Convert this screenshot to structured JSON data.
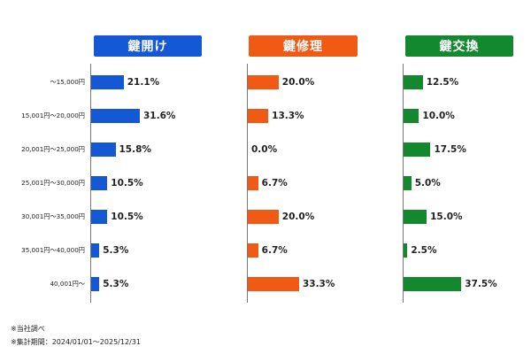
{
  "chart_data": {
    "type": "bar",
    "orientation": "horizontal",
    "layout": "small-multiples",
    "categories": [
      "～15,000円",
      "15,001円～20,000円",
      "20,001円～25,000円",
      "25,001円～30,000円",
      "30,001円～35,000円",
      "35,001円～40,000円",
      "40,001円～"
    ],
    "xlim": [
      0,
      40
    ],
    "grid": false,
    "legend": "none",
    "series": [
      {
        "name": "鍵開け",
        "color": "#1558d6",
        "values": [
          21.1,
          31.6,
          15.8,
          10.5,
          10.5,
          5.3,
          5.3
        ],
        "labels": [
          "21.1%",
          "31.6%",
          "15.8%",
          "10.5%",
          "10.5%",
          "5.3%",
          "5.3%"
        ]
      },
      {
        "name": "鍵修理",
        "color": "#f05a14",
        "values": [
          20.0,
          13.3,
          0.0,
          6.7,
          20.0,
          6.7,
          33.3
        ],
        "labels": [
          "20.0%",
          "13.3%",
          "0.0%",
          "6.7%",
          "20.0%",
          "6.7%",
          "33.3%"
        ]
      },
      {
        "name": "鍵交換",
        "color": "#13882e",
        "values": [
          12.5,
          10.0,
          17.5,
          5.0,
          15.0,
          2.5,
          37.5
        ],
        "labels": [
          "12.5%",
          "10.0%",
          "17.5%",
          "5.0%",
          "15.0%",
          "2.5%",
          "37.5%"
        ]
      }
    ]
  },
  "footnotes": [
    "※当社調べ",
    "※集計期間：2024/01/01～2025/12/31"
  ]
}
